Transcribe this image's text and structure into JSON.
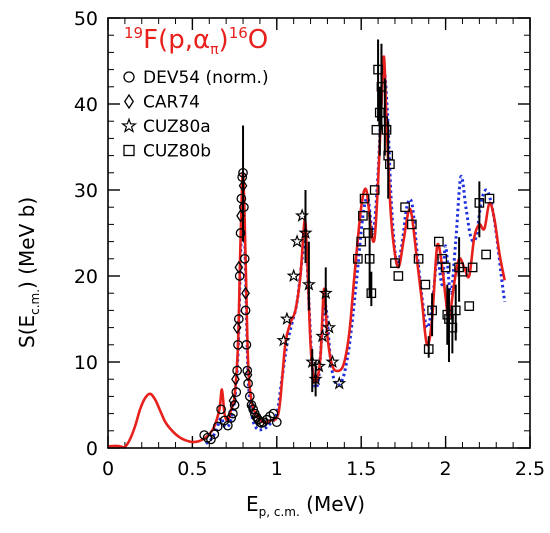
{
  "chart_data": {
    "type": "scatter",
    "title": {
      "mass_a": "19",
      "element_a": "F(p,",
      "alpha": "α",
      "pi": "π",
      "close": ")",
      "mass_b": "16",
      "element_b": "O"
    },
    "xlabel": {
      "main": "E",
      "sub": "p, c.m.",
      "unit": " (MeV)"
    },
    "ylabel": {
      "main": "S(E",
      "sub": "c.m.",
      "unit": ") (MeV b)"
    },
    "xlim": [
      0,
      2.5
    ],
    "ylim": [
      0,
      50
    ],
    "xticks": [
      "0",
      "0.5",
      "1",
      "1.5",
      "2",
      "2.5"
    ],
    "yticks": [
      "0",
      "10",
      "20",
      "30",
      "40",
      "50"
    ],
    "legend_position": "top-left",
    "colors": {
      "fit_solid": "#e8201c",
      "fit_dotted": "#1e2fe0",
      "axis": "#000000"
    },
    "series": [
      {
        "name": "DEV54 (norm.)",
        "marker": "circle",
        "points": [
          [
            0.57,
            1.5
          ],
          [
            0.59,
            1.2
          ],
          [
            0.61,
            1.0
          ],
          [
            0.63,
            1.6
          ],
          [
            0.65,
            2.5
          ],
          [
            0.67,
            4.5
          ],
          [
            0.69,
            3.2
          ],
          [
            0.71,
            2.6
          ],
          [
            0.73,
            3.5
          ],
          [
            0.74,
            4.0
          ],
          [
            0.75,
            5.0
          ],
          [
            0.76,
            6.5
          ],
          [
            0.765,
            9.0
          ],
          [
            0.77,
            12.0
          ],
          [
            0.775,
            15.0
          ],
          [
            0.78,
            20.0
          ],
          [
            0.785,
            25.0
          ],
          [
            0.79,
            29.0
          ],
          [
            0.795,
            31.5
          ],
          [
            0.8,
            32.0
          ],
          [
            0.805,
            28.0
          ],
          [
            0.81,
            22.0
          ],
          [
            0.815,
            16.0
          ],
          [
            0.82,
            12.0
          ],
          [
            0.825,
            9.0
          ],
          [
            0.83,
            7.5
          ],
          [
            0.84,
            6.0
          ],
          [
            0.85,
            5.0
          ],
          [
            0.86,
            4.5
          ],
          [
            0.87,
            4.0
          ],
          [
            0.88,
            3.6
          ],
          [
            0.89,
            3.3
          ],
          [
            0.9,
            3.0
          ],
          [
            0.91,
            2.9
          ],
          [
            0.92,
            3.0
          ],
          [
            0.94,
            3.3
          ],
          [
            0.96,
            3.7
          ],
          [
            0.98,
            4.0
          ],
          [
            1.0,
            3.0
          ]
        ]
      },
      {
        "name": "CAR74",
        "marker": "diamond",
        "points": [
          [
            0.74,
            5.5
          ],
          [
            0.755,
            8.0
          ],
          [
            0.765,
            14.0
          ],
          [
            0.775,
            21.0
          ],
          [
            0.785,
            27.0
          ],
          [
            0.8,
            30.5
          ],
          [
            0.815,
            18.0
          ],
          [
            0.83,
            8.5
          ],
          [
            0.85,
            4.8
          ],
          [
            0.88,
            3.5
          ]
        ]
      },
      {
        "name": "CUZ80a",
        "marker": "star",
        "points": [
          [
            1.04,
            12.5
          ],
          [
            1.06,
            15.0
          ],
          [
            1.1,
            20.0
          ],
          [
            1.12,
            24.0
          ],
          [
            1.15,
            27.0
          ],
          [
            1.17,
            25.0
          ],
          [
            1.19,
            19.0
          ],
          [
            1.21,
            10.0
          ],
          [
            1.23,
            8.0
          ],
          [
            1.25,
            9.5
          ],
          [
            1.27,
            13.0
          ],
          [
            1.29,
            18.0
          ],
          [
            1.31,
            14.0
          ],
          [
            1.33,
            10.0
          ],
          [
            1.37,
            7.5
          ]
        ]
      },
      {
        "name": "CUZ80b",
        "marker": "square",
        "points": [
          [
            1.48,
            22.0
          ],
          [
            1.5,
            24.0
          ],
          [
            1.51,
            27.0
          ],
          [
            1.52,
            29.0
          ],
          [
            1.54,
            25.0
          ],
          [
            1.55,
            22.0
          ],
          [
            1.56,
            18.0
          ],
          [
            1.58,
            30.0
          ],
          [
            1.59,
            37.0
          ],
          [
            1.6,
            44.0
          ],
          [
            1.61,
            39.0
          ],
          [
            1.62,
            42.0
          ],
          [
            1.63,
            38.0
          ],
          [
            1.65,
            37.0
          ],
          [
            1.66,
            34.0
          ],
          [
            1.67,
            33.0
          ],
          [
            1.7,
            21.5
          ],
          [
            1.72,
            20.0
          ],
          [
            1.76,
            28.0
          ],
          [
            1.8,
            26.0
          ],
          [
            1.84,
            22.0
          ],
          [
            1.88,
            19.0
          ],
          [
            1.9,
            11.5
          ],
          [
            1.92,
            16.0
          ],
          [
            1.96,
            24.0
          ],
          [
            1.98,
            22.0
          ],
          [
            2.0,
            21.0
          ],
          [
            2.01,
            15.5
          ],
          [
            2.02,
            15.0
          ],
          [
            2.04,
            14.0
          ],
          [
            2.06,
            16.0
          ],
          [
            2.08,
            21.0
          ],
          [
            2.1,
            20.5
          ],
          [
            2.14,
            16.5
          ],
          [
            2.16,
            21.0
          ],
          [
            2.2,
            28.5
          ],
          [
            2.24,
            22.5
          ],
          [
            2.26,
            29.0
          ]
        ]
      }
    ],
    "curves": [
      {
        "style": "solid",
        "points": [
          [
            0.0,
            0.2
          ],
          [
            0.05,
            0.25
          ],
          [
            0.08,
            0.15
          ],
          [
            0.1,
            0.12
          ],
          [
            0.13,
            1.0
          ],
          [
            0.16,
            2.5
          ],
          [
            0.19,
            4.5
          ],
          [
            0.22,
            5.8
          ],
          [
            0.25,
            6.3
          ],
          [
            0.28,
            5.6
          ],
          [
            0.31,
            4.3
          ],
          [
            0.34,
            3.0
          ],
          [
            0.38,
            2.0
          ],
          [
            0.42,
            1.3
          ],
          [
            0.46,
            0.9
          ],
          [
            0.5,
            0.7
          ],
          [
            0.54,
            0.8
          ],
          [
            0.57,
            1.1
          ],
          [
            0.6,
            1.6
          ],
          [
            0.63,
            2.5
          ],
          [
            0.66,
            4.5
          ],
          [
            0.675,
            6.8
          ],
          [
            0.69,
            4.0
          ],
          [
            0.71,
            3.2
          ],
          [
            0.73,
            4.5
          ],
          [
            0.75,
            6.0
          ],
          [
            0.77,
            12.0
          ],
          [
            0.785,
            24.0
          ],
          [
            0.8,
            32.0
          ],
          [
            0.815,
            22.0
          ],
          [
            0.83,
            10.0
          ],
          [
            0.85,
            5.5
          ],
          [
            0.88,
            3.8
          ],
          [
            0.92,
            3.0
          ],
          [
            0.96,
            3.2
          ],
          [
            1.0,
            3.5
          ],
          [
            1.02,
            5.5
          ],
          [
            1.05,
            12.0
          ],
          [
            1.08,
            14.5
          ],
          [
            1.11,
            16.0
          ],
          [
            1.14,
            20.0
          ],
          [
            1.165,
            26.5
          ],
          [
            1.18,
            22.0
          ],
          [
            1.2,
            12.0
          ],
          [
            1.22,
            8.0
          ],
          [
            1.24,
            8.0
          ],
          [
            1.26,
            11.0
          ],
          [
            1.28,
            18.5
          ],
          [
            1.3,
            13.0
          ],
          [
            1.33,
            9.5
          ],
          [
            1.37,
            9.0
          ],
          [
            1.4,
            10.0
          ],
          [
            1.43,
            13.5
          ],
          [
            1.46,
            20.0
          ],
          [
            1.5,
            28.0
          ],
          [
            1.53,
            30.0
          ],
          [
            1.56,
            25.0
          ],
          [
            1.58,
            24.5
          ],
          [
            1.6,
            31.0
          ],
          [
            1.62,
            40.0
          ],
          [
            1.635,
            45.5
          ],
          [
            1.65,
            38.0
          ],
          [
            1.67,
            29.0
          ],
          [
            1.69,
            24.0
          ],
          [
            1.72,
            21.0
          ],
          [
            1.75,
            24.0
          ],
          [
            1.78,
            27.5
          ],
          [
            1.8,
            27.0
          ],
          [
            1.83,
            22.0
          ],
          [
            1.86,
            17.0
          ],
          [
            1.89,
            12.0
          ],
          [
            1.92,
            15.0
          ],
          [
            1.95,
            23.5
          ],
          [
            1.98,
            21.0
          ],
          [
            2.0,
            17.5
          ],
          [
            2.02,
            15.0
          ],
          [
            2.05,
            19.0
          ],
          [
            2.08,
            22.0
          ],
          [
            2.11,
            21.0
          ],
          [
            2.14,
            20.0
          ],
          [
            2.17,
            24.5
          ],
          [
            2.2,
            26.0
          ],
          [
            2.23,
            25.5
          ],
          [
            2.26,
            28.5
          ],
          [
            2.29,
            26.5
          ],
          [
            2.32,
            22.5
          ],
          [
            2.35,
            19.5
          ]
        ]
      },
      {
        "style": "dotted",
        "points": [
          [
            0.58,
            0.5
          ],
          [
            0.61,
            1.0
          ],
          [
            0.64,
            2.0
          ],
          [
            0.67,
            3.5
          ],
          [
            0.69,
            2.5
          ],
          [
            0.72,
            2.8
          ],
          [
            0.75,
            5.5
          ],
          [
            0.77,
            11.0
          ],
          [
            0.785,
            22.0
          ],
          [
            0.8,
            30.5
          ],
          [
            0.815,
            20.0
          ],
          [
            0.83,
            8.5
          ],
          [
            0.85,
            4.0
          ],
          [
            0.88,
            2.3
          ],
          [
            0.92,
            2.2
          ],
          [
            0.96,
            2.8
          ],
          [
            1.0,
            4.0
          ],
          [
            1.03,
            8.0
          ],
          [
            1.06,
            12.0
          ],
          [
            1.09,
            14.5
          ],
          [
            1.12,
            17.0
          ],
          [
            1.15,
            22.0
          ],
          [
            1.17,
            25.0
          ],
          [
            1.19,
            17.0
          ],
          [
            1.21,
            9.5
          ],
          [
            1.23,
            7.0
          ],
          [
            1.25,
            8.5
          ],
          [
            1.27,
            14.0
          ],
          [
            1.29,
            16.5
          ],
          [
            1.32,
            10.0
          ],
          [
            1.35,
            7.5
          ],
          [
            1.39,
            8.0
          ],
          [
            1.43,
            12.0
          ],
          [
            1.47,
            19.0
          ],
          [
            1.51,
            27.0
          ],
          [
            1.54,
            29.0
          ],
          [
            1.57,
            25.0
          ],
          [
            1.6,
            32.0
          ],
          [
            1.63,
            44.0
          ],
          [
            1.655,
            39.0
          ],
          [
            1.68,
            28.0
          ],
          [
            1.71,
            21.5
          ],
          [
            1.74,
            23.5
          ],
          [
            1.77,
            28.0
          ],
          [
            1.8,
            28.5
          ],
          [
            1.83,
            23.0
          ],
          [
            1.86,
            17.5
          ],
          [
            1.89,
            14.0
          ],
          [
            1.92,
            16.5
          ],
          [
            1.95,
            22.0
          ],
          [
            1.98,
            19.0
          ],
          [
            2.0,
            23.5
          ],
          [
            2.03,
            18.0
          ],
          [
            2.06,
            24.0
          ],
          [
            2.09,
            31.5
          ],
          [
            2.12,
            28.0
          ],
          [
            2.15,
            24.5
          ],
          [
            2.18,
            24.5
          ],
          [
            2.21,
            28.5
          ],
          [
            2.24,
            30.0
          ],
          [
            2.27,
            28.5
          ],
          [
            2.3,
            25.0
          ],
          [
            2.33,
            20.0
          ],
          [
            2.35,
            17.0
          ]
        ]
      }
    ],
    "error_bars": [
      {
        "x": 0.8,
        "lo": 24.0,
        "hi": 37.5
      },
      {
        "x": 1.17,
        "lo": 21.5,
        "hi": 30.0
      },
      {
        "x": 1.19,
        "lo": 16.0,
        "hi": 24.0
      },
      {
        "x": 1.21,
        "lo": 6.5,
        "hi": 11.5
      },
      {
        "x": 1.23,
        "lo": 6.0,
        "hi": 10.0
      },
      {
        "x": 1.29,
        "lo": 15.5,
        "hi": 21.0
      },
      {
        "x": 1.55,
        "lo": 17.5,
        "hi": 27.5
      },
      {
        "x": 1.56,
        "lo": 16.5,
        "hi": 20.5
      },
      {
        "x": 1.6,
        "lo": 38.0,
        "hi": 47.5
      },
      {
        "x": 1.61,
        "lo": 34.0,
        "hi": 42.0
      },
      {
        "x": 1.62,
        "lo": 37.0,
        "hi": 47.0
      },
      {
        "x": 1.64,
        "lo": 34.0,
        "hi": 43.0
      },
      {
        "x": 1.66,
        "lo": 29.0,
        "hi": 38.0
      },
      {
        "x": 1.9,
        "lo": 10.5,
        "hi": 13.0
      },
      {
        "x": 1.92,
        "lo": 13.0,
        "hi": 18.0
      },
      {
        "x": 2.01,
        "lo": 12.0,
        "hi": 19.0
      },
      {
        "x": 2.02,
        "lo": 10.0,
        "hi": 18.5
      },
      {
        "x": 2.04,
        "lo": 11.0,
        "hi": 16.5
      },
      {
        "x": 2.06,
        "lo": 12.5,
        "hi": 19.0
      },
      {
        "x": 2.08,
        "lo": 17.0,
        "hi": 24.5
      },
      {
        "x": 2.2,
        "lo": 24.5,
        "hi": 31.0
      }
    ]
  }
}
